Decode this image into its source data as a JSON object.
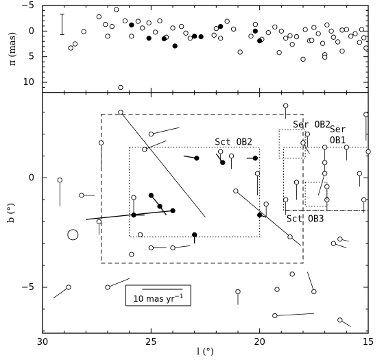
{
  "chart_data": [
    {
      "type": "scatter",
      "panel": "top",
      "ylabel": "π (mas)",
      "xlim": [
        30,
        15
      ],
      "ylim": [
        12,
        -5
      ],
      "yticks": [
        -5,
        0,
        5,
        10
      ],
      "ytick_labels": [
        "−5",
        "0",
        "5",
        "10"
      ],
      "errorbar_example": {
        "x": 29.1,
        "y": -1.3,
        "half_length": 2.0
      },
      "series": [
        {
          "style": "open",
          "points": [
            [
              28.7,
              3.3
            ],
            [
              28.5,
              2.5
            ],
            [
              28.1,
              0.1
            ],
            [
              27.4,
              -2.8
            ],
            [
              27.1,
              -1.3
            ],
            [
              27.0,
              1.0
            ],
            [
              26.8,
              -0.9
            ],
            [
              26.6,
              -4.2
            ],
            [
              26.4,
              11.0
            ],
            [
              26.2,
              -2.0
            ],
            [
              25.9,
              1.0
            ],
            [
              25.6,
              -1.9
            ],
            [
              25.4,
              -0.6
            ],
            [
              25.1,
              -1.6
            ],
            [
              24.8,
              0.2
            ],
            [
              24.6,
              -2.0
            ],
            [
              24.3,
              1.2
            ],
            [
              24.0,
              -0.6
            ],
            [
              23.6,
              -0.9
            ],
            [
              23.4,
              0.4
            ],
            [
              23.2,
              1.4
            ],
            [
              22.1,
              0.8
            ],
            [
              22.0,
              -0.5
            ],
            [
              21.8,
              1.4
            ],
            [
              21.5,
              -1.9
            ],
            [
              21.2,
              -0.4
            ],
            [
              20.9,
              4.1
            ],
            [
              20.4,
              1.0
            ],
            [
              20.2,
              -1.3
            ],
            [
              19.9,
              1.6
            ],
            [
              19.6,
              0.3
            ],
            [
              19.3,
              -0.8
            ],
            [
              19.1,
              4.2
            ],
            [
              19.0,
              0.0
            ],
            [
              18.8,
              1.4
            ],
            [
              18.6,
              0.9
            ],
            [
              18.5,
              2.6
            ],
            [
              18.3,
              1.1
            ],
            [
              18.0,
              5.5
            ],
            [
              17.9,
              -0.3
            ],
            [
              17.7,
              1.9
            ],
            [
              17.5,
              -0.7
            ],
            [
              17.3,
              0.5
            ],
            [
              17.1,
              2.4
            ],
            [
              16.9,
              -1.2
            ],
            [
              16.7,
              0.0
            ],
            [
              16.6,
              1.2
            ],
            [
              16.4,
              2.1
            ],
            [
              16.2,
              3.9
            ],
            [
              16.0,
              -0.3
            ],
            [
              15.8,
              1.0
            ],
            [
              15.6,
              0.5
            ],
            [
              15.4,
              2.2
            ],
            [
              15.3,
              -0.3
            ],
            [
              15.2,
              1.3
            ],
            [
              15.1,
              3.3
            ],
            [
              17.0,
              4.6
            ],
            [
              17.0,
              5.1
            ],
            [
              17.6,
              1.8
            ],
            [
              16.2,
              -0.2
            ]
          ]
        },
        {
          "style": "filled",
          "points": [
            [
              25.9,
              -1.2
            ],
            [
              25.1,
              1.4
            ],
            [
              24.4,
              1.5
            ],
            [
              23.9,
              2.9
            ],
            [
              23.0,
              1.0
            ],
            [
              22.7,
              1.1
            ],
            [
              21.8,
              -0.9
            ],
            [
              20.2,
              0.0
            ],
            [
              20.0,
              1.9
            ]
          ]
        }
      ]
    },
    {
      "type": "scatter",
      "panel": "bottom",
      "xlabel": "l (°)",
      "ylabel": "b (°)",
      "xlim": [
        30,
        15
      ],
      "ylim": [
        -7.1,
        3.9
      ],
      "xticks": [
        30,
        25,
        20,
        15
      ],
      "xtick_labels": [
        "30",
        "25",
        "20",
        "15"
      ],
      "yticks": [
        -5,
        0
      ],
      "ytick_labels": [
        "−5",
        "0"
      ],
      "scale_bar_label": "10 mas yr",
      "scale_bar_exp": "−1",
      "scale_bar": {
        "x1": 26.1,
        "x2": 23.3,
        "y": -5.5
      },
      "circle_marker": {
        "x": 28.6,
        "y": -2.6,
        "r": 0.18
      },
      "regions": [
        {
          "label": "",
          "style": "dashed",
          "x": [
            27.3,
            18.0
          ],
          "y": [
            -3.9,
            2.9
          ]
        },
        {
          "label": "Sct OB2",
          "style": "dotted",
          "x": [
            26.0,
            20.0
          ],
          "y": [
            -2.7,
            1.4
          ],
          "label_pos": [
            21.2,
            1.5
          ]
        },
        {
          "label": "Ser OB2",
          "style": "dotted",
          "x": [
            19.1,
            17.9
          ],
          "y": [
            0.9,
            2.2
          ],
          "label_pos": [
            17.6,
            2.3
          ]
        },
        {
          "label": "Ser OB1",
          "style": "dotted",
          "x": [
            18.9,
            15.0
          ],
          "y": [
            -1.5,
            1.4
          ],
          "label_pos": [
            16.4,
            1.7
          ]
        },
        {
          "label": "",
          "style": "dotted",
          "x": [
            17.9,
            16.9
          ],
          "y": [
            -1.3,
            -0.2
          ]
        },
        {
          "label": "",
          "style": "dashed",
          "x": [
            18.8,
            15.0
          ],
          "y": [
            -1.5,
            -1.5
          ]
        },
        {
          "label": "Sct OB3",
          "style": "",
          "x": null,
          "y": null,
          "label_pos": [
            17.9,
            -2.0
          ]
        }
      ],
      "open_points": [
        {
          "l": 29.2,
          "b": -0.1,
          "dl": 0.0,
          "db": -1.2
        },
        {
          "l": 28.2,
          "b": -0.8,
          "dl": -0.6,
          "db": 0.0
        },
        {
          "l": 28.8,
          "b": -5.0,
          "dl": 0.7,
          "db": -0.5
        },
        {
          "l": 27.4,
          "b": -2.0,
          "dl": 0.0,
          "db": -0.6
        },
        {
          "l": 27.3,
          "b": 1.6,
          "dl": 0.0,
          "db": -1.2
        },
        {
          "l": 27.0,
          "b": -5.0,
          "dl": -1.0,
          "db": 0.4
        },
        {
          "l": 26.4,
          "b": 3.0,
          "dl": -3.9,
          "db": -4.8
        },
        {
          "l": 25.9,
          "b": -3.5,
          "dl": 0.0,
          "db": 0.0
        },
        {
          "l": 25.8,
          "b": -0.9,
          "dl": 0.0,
          "db": -0.8
        },
        {
          "l": 25.5,
          "b": -2.6,
          "dl": 0.0,
          "db": 0.0
        },
        {
          "l": 25.3,
          "b": 1.3,
          "dl": -1.0,
          "db": 0.4
        },
        {
          "l": 25.0,
          "b": 2.0,
          "dl": -1.3,
          "db": 0.3
        },
        {
          "l": 25.0,
          "b": -3.2,
          "dl": -0.7,
          "db": 0.0
        },
        {
          "l": 24.0,
          "b": -3.2,
          "dl": -0.8,
          "db": 0.1
        },
        {
          "l": 21.0,
          "b": -5.2,
          "dl": 0.0,
          "db": -0.6
        },
        {
          "l": 21.8,
          "b": 1.2,
          "dl": 0.0,
          "db": -0.5
        },
        {
          "l": 21.3,
          "b": 1.0,
          "dl": 0.0,
          "db": -0.6
        },
        {
          "l": 21.1,
          "b": -0.6,
          "dl": -3.0,
          "db": -2.5
        },
        {
          "l": 20.1,
          "b": 0.2,
          "dl": 0.0,
          "db": -1.0
        },
        {
          "l": 19.7,
          "b": -1.2,
          "dl": 0.0,
          "db": -0.6
        },
        {
          "l": 19.3,
          "b": -6.3,
          "dl": -1.8,
          "db": 0.1
        },
        {
          "l": 19.2,
          "b": -5.1,
          "dl": 0.0,
          "db": 0.0
        },
        {
          "l": 18.8,
          "b": 3.3,
          "dl": 0.0,
          "db": -0.6
        },
        {
          "l": 18.8,
          "b": -1.0,
          "dl": 0.0,
          "db": -0.7
        },
        {
          "l": 18.6,
          "b": -2.7,
          "dl": 0.0,
          "db": 0.0
        },
        {
          "l": 18.5,
          "b": -4.4,
          "dl": 0.0,
          "db": 0.0
        },
        {
          "l": 18.3,
          "b": -0.2,
          "dl": 0.0,
          "db": -0.8
        },
        {
          "l": 18.0,
          "b": 1.6,
          "dl": -0.3,
          "db": -0.5
        },
        {
          "l": 17.8,
          "b": 2.0,
          "dl": 0.0,
          "db": -0.6
        },
        {
          "l": 17.5,
          "b": -5.2,
          "dl": 0.3,
          "db": 0.9
        },
        {
          "l": 17.0,
          "b": 1.4,
          "dl": 0.0,
          "db": -0.8
        },
        {
          "l": 17.0,
          "b": 0.7,
          "dl": 0.0,
          "db": -0.5
        },
        {
          "l": 17.0,
          "b": 0.2,
          "dl": 0.3,
          "db": -1.0
        },
        {
          "l": 16.9,
          "b": -1.0,
          "dl": 0.0,
          "db": -0.5
        },
        {
          "l": 16.9,
          "b": -0.4,
          "dl": 0.0,
          "db": -0.6
        },
        {
          "l": 16.6,
          "b": -3.0,
          "dl": -0.6,
          "db": -0.2
        },
        {
          "l": 16.3,
          "b": -2.8,
          "dl": -0.4,
          "db": -0.1
        },
        {
          "l": 16.3,
          "b": -6.5,
          "dl": -0.5,
          "db": -0.3
        },
        {
          "l": 16.0,
          "b": 1.4,
          "dl": 0.0,
          "db": -0.6
        },
        {
          "l": 15.4,
          "b": 0.2,
          "dl": 0.0,
          "db": -0.6
        },
        {
          "l": 15.2,
          "b": -1.0,
          "dl": 0.0,
          "db": -0.6
        },
        {
          "l": 15.1,
          "b": 2.9,
          "dl": 0.0,
          "db": -1.2
        },
        {
          "l": 15.0,
          "b": 1.2,
          "dl": 0.0,
          "db": -0.6
        }
      ],
      "filled_points": [
        {
          "l": 22.9,
          "b": 0.9,
          "dl": 0.6,
          "db": 0.1
        },
        {
          "l": 21.7,
          "b": 0.7,
          "dl": 0.3,
          "db": 0.4
        },
        {
          "l": 20.2,
          "b": 0.9,
          "dl": 0.4,
          "db": 0.0
        },
        {
          "l": 25.0,
          "b": -0.8,
          "dl": -0.5,
          "db": -0.6
        },
        {
          "l": 24.6,
          "b": -1.3,
          "dl": -0.3,
          "db": -0.4
        },
        {
          "l": 24.0,
          "b": -1.5,
          "dl": 4.0,
          "db": -0.4
        },
        {
          "l": 25.8,
          "b": -1.7,
          "dl": -0.5,
          "db": 0.0
        },
        {
          "l": 20.0,
          "b": -1.7,
          "dl": -0.3,
          "db": -0.1
        },
        {
          "l": 23.0,
          "b": -2.6,
          "dl": 0.0,
          "db": -0.4
        }
      ]
    }
  ]
}
